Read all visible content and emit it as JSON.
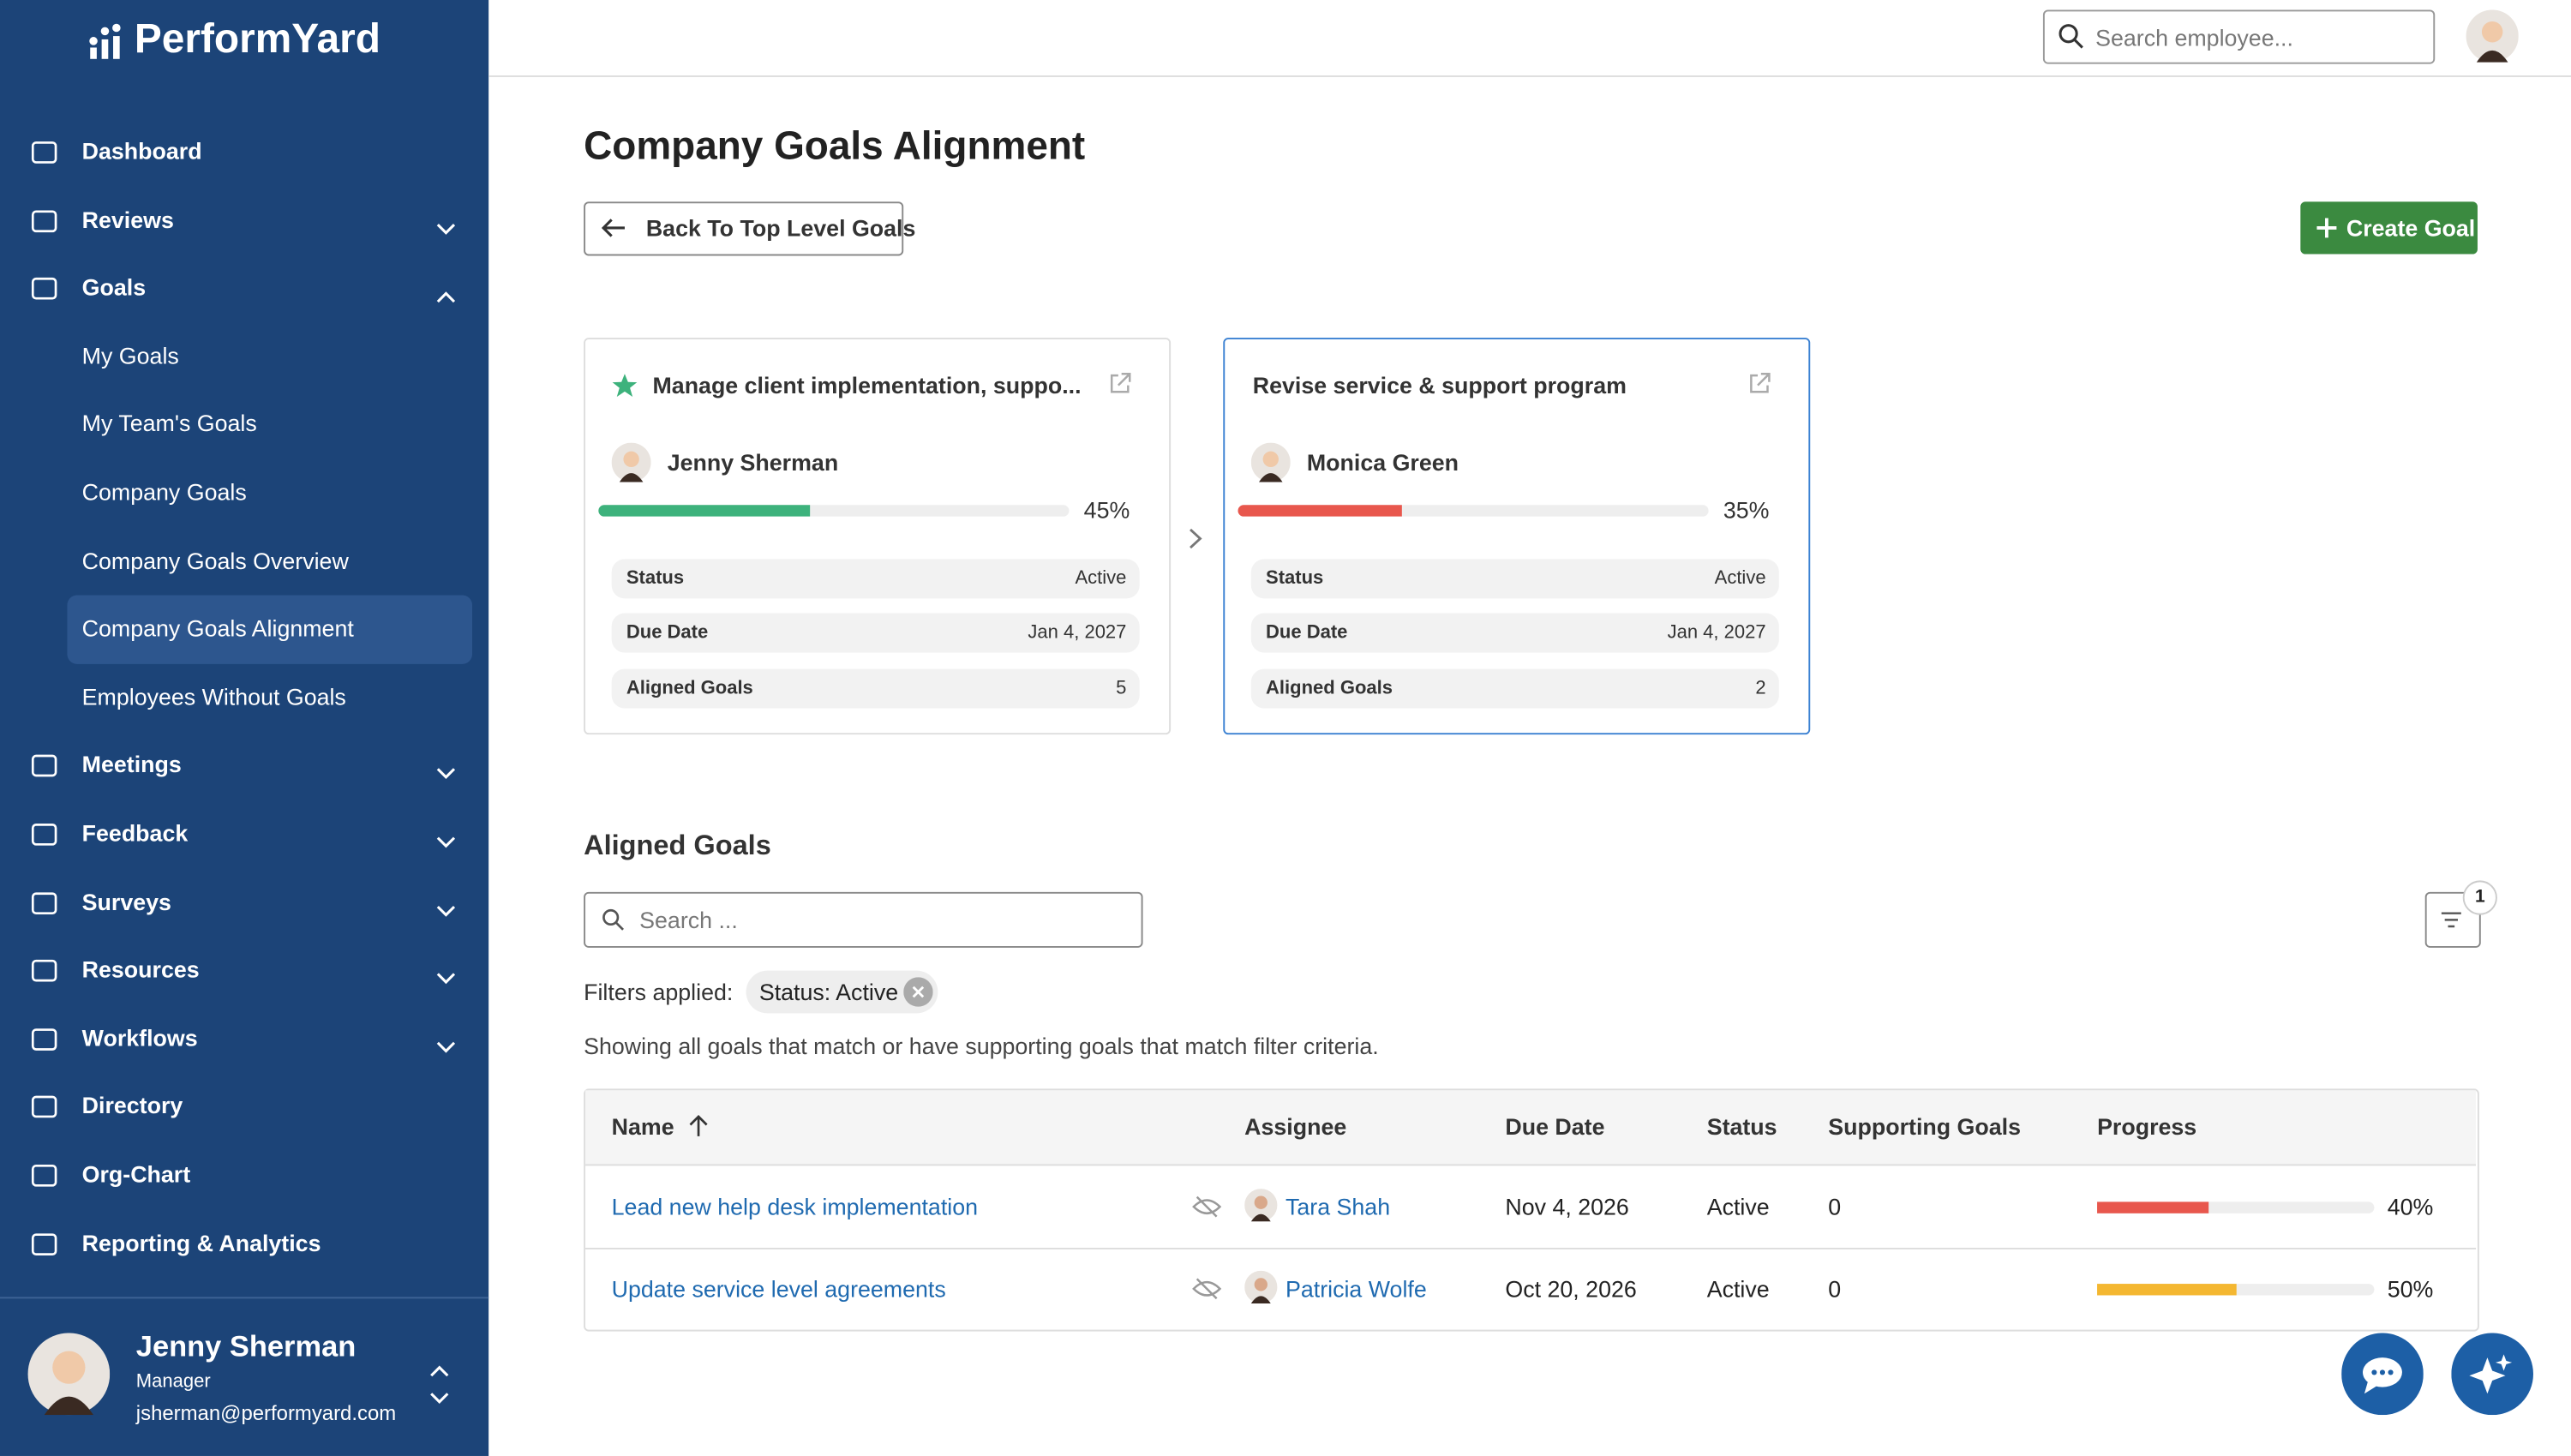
{
  "sidebar": {
    "brand": "PerformYard",
    "nav": [
      {
        "label": "Dashboard",
        "expandable": false
      },
      {
        "label": "Reviews",
        "expandable": true
      },
      {
        "label": "Goals",
        "expandable": true,
        "open": true,
        "children": [
          "My Goals",
          "My Team's Goals",
          "Company Goals",
          "Company Goals Overview",
          "Company Goals Alignment",
          "Employees Without Goals"
        ],
        "active_child": 4
      },
      {
        "label": "Meetings",
        "expandable": true
      },
      {
        "label": "Feedback",
        "expandable": true
      },
      {
        "label": "Surveys",
        "expandable": true
      },
      {
        "label": "Resources",
        "expandable": true
      },
      {
        "label": "Workflows",
        "expandable": true
      },
      {
        "label": "Directory",
        "expandable": false
      },
      {
        "label": "Org-Chart",
        "expandable": false
      },
      {
        "label": "Reporting & Analytics",
        "expandable": false
      }
    ],
    "user": {
      "name": "Jenny Sherman",
      "role": "Manager",
      "email": "jsherman@performyard.com"
    }
  },
  "header": {
    "search_placeholder": "Search employee..."
  },
  "page": {
    "title": "Company Goals Alignment",
    "back_button": "Back To Top Level Goals",
    "create_button": "Create Goal"
  },
  "cards": [
    {
      "title": "Manage client implementation, suppo...",
      "starred": true,
      "selected": false,
      "assignee": "Jenny Sherman",
      "progress": 45,
      "progress_label": "45%",
      "color": "#3db27c",
      "fields": [
        [
          "Status",
          "Active"
        ],
        [
          "Due Date",
          "Jan 4, 2027"
        ],
        [
          "Aligned Goals",
          5
        ]
      ]
    },
    {
      "title": "Revise service & support program",
      "starred": false,
      "selected": true,
      "assignee": "Monica Green",
      "progress": 35,
      "progress_label": "35%",
      "color": "#e8574d",
      "fields": [
        [
          "Status",
          "Active"
        ],
        [
          "Due Date",
          "Jan 4, 2027"
        ],
        [
          "Aligned Goals",
          2
        ]
      ]
    }
  ],
  "aligned": {
    "title": "Aligned Goals",
    "search_placeholder": "Search ...",
    "filter_count": 1,
    "filters_label": "Filters applied:",
    "filter_chip": "Status: Active",
    "note": "Showing all goals that match or have supporting goals that match filter criteria.",
    "table": {
      "columns": [
        "Name",
        "Assignee",
        "Due Date",
        "Status",
        "Supporting Goals",
        "Progress"
      ],
      "rows": [
        {
          "name": "Lead new help desk implementation",
          "assignee": "Tara Shah",
          "due": "Nov 4, 2026",
          "status": "Active",
          "supporting": 0,
          "progress": 40,
          "progress_label": "40%",
          "color": "#e8574d"
        },
        {
          "name": "Update service level agreements",
          "assignee": "Patricia Wolfe",
          "due": "Oct 20, 2026",
          "status": "Active",
          "supporting": 0,
          "progress": 50,
          "progress_label": "50%",
          "color": "#f4b731"
        }
      ]
    }
  }
}
